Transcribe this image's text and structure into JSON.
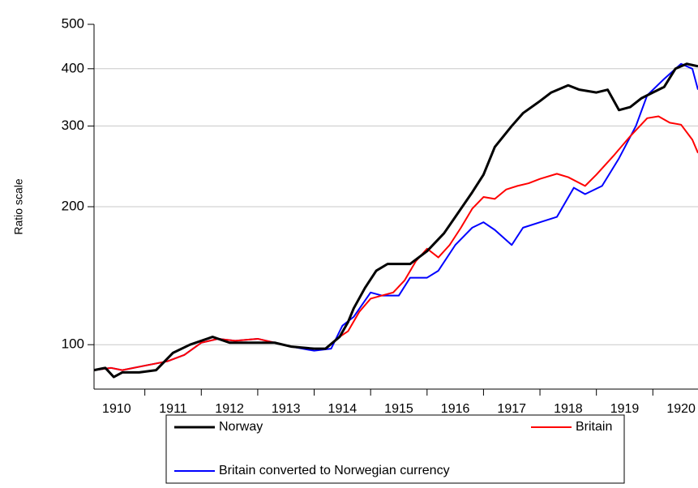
{
  "chart_data": {
    "type": "line",
    "y_label": "Ratio scale",
    "log_scale": true,
    "grid": true,
    "xlim": [
      1910.1,
      1920.8
    ],
    "xticks": [
      1910,
      1911,
      1912,
      1913,
      1914,
      1915,
      1916,
      1917,
      1918,
      1919,
      1920
    ],
    "ylim": [
      80,
      500
    ],
    "yticks": [
      100,
      200,
      300,
      400,
      500
    ],
    "series": [
      {
        "name": "Norway",
        "color": "#000000",
        "x": [
          1910.1,
          1910.3,
          1910.45,
          1910.6,
          1910.9,
          1911.2,
          1911.5,
          1911.8,
          1912.2,
          1912.5,
          1912.9,
          1913.3,
          1913.6,
          1914.0,
          1914.2,
          1914.45,
          1914.6,
          1914.7,
          1914.9,
          1915.1,
          1915.3,
          1915.5,
          1915.7,
          1916.0,
          1916.3,
          1916.5,
          1916.8,
          1917.0,
          1917.2,
          1917.5,
          1917.7,
          1918.0,
          1918.2,
          1918.5,
          1918.7,
          1919.0,
          1919.2,
          1919.4,
          1919.6,
          1919.8,
          1920.0,
          1920.2,
          1920.4,
          1920.6,
          1920.8
        ],
        "values": [
          88,
          89,
          85,
          87,
          87,
          88,
          96,
          100,
          104,
          101,
          101,
          101,
          99,
          98,
          98,
          104,
          112,
          120,
          133,
          145,
          150,
          150,
          150,
          160,
          175,
          190,
          215,
          235,
          270,
          300,
          320,
          340,
          355,
          368,
          360,
          355,
          360,
          325,
          330,
          345,
          355,
          365,
          400,
          410,
          405
        ]
      },
      {
        "name": "Britain",
        "color": "#ff0000",
        "x": [
          1910.1,
          1910.4,
          1910.6,
          1911.0,
          1911.4,
          1911.7,
          1912.0,
          1912.3,
          1912.6,
          1913.0,
          1913.3,
          1913.6,
          1914.0,
          1914.2,
          1914.4,
          1914.6,
          1914.8,
          1915.0,
          1915.2,
          1915.4,
          1915.6,
          1915.8,
          1916.0,
          1916.2,
          1916.4,
          1916.6,
          1916.8,
          1917.0,
          1917.2,
          1917.4,
          1917.6,
          1917.8,
          1918.0,
          1918.3,
          1918.5,
          1918.8,
          1919.0,
          1919.3,
          1919.6,
          1919.9,
          1920.1,
          1920.3,
          1920.5,
          1920.7,
          1920.8
        ],
        "values": [
          88,
          89,
          88,
          90,
          92,
          95,
          101,
          103,
          102,
          103,
          101,
          99,
          98,
          98,
          103,
          107,
          118,
          126,
          128,
          130,
          138,
          152,
          162,
          155,
          165,
          180,
          198,
          210,
          208,
          218,
          222,
          225,
          230,
          236,
          232,
          222,
          235,
          258,
          285,
          312,
          315,
          305,
          302,
          280,
          262
        ]
      },
      {
        "name": "Britain converted to Norwegian currency",
        "color": "#0000ff",
        "x": [
          1910.1,
          1910.4,
          1910.6,
          1911.0,
          1911.4,
          1911.7,
          1912.0,
          1912.3,
          1912.6,
          1913.0,
          1913.3,
          1913.6,
          1914.0,
          1914.3,
          1914.5,
          1914.7,
          1915.0,
          1915.2,
          1915.5,
          1915.7,
          1916.0,
          1916.2,
          1916.5,
          1916.8,
          1917.0,
          1917.2,
          1917.5,
          1917.7,
          1918.0,
          1918.3,
          1918.6,
          1918.8,
          1919.1,
          1919.4,
          1919.7,
          1919.9,
          1920.2,
          1920.5,
          1920.7,
          1920.8
        ],
        "values": [
          88,
          89,
          88,
          90,
          92,
          95,
          101,
          103,
          102,
          103,
          101,
          99,
          97,
          98,
          110,
          115,
          130,
          128,
          128,
          140,
          140,
          145,
          165,
          180,
          185,
          178,
          165,
          180,
          185,
          190,
          220,
          213,
          222,
          255,
          300,
          350,
          380,
          410,
          400,
          360
        ]
      }
    ]
  }
}
